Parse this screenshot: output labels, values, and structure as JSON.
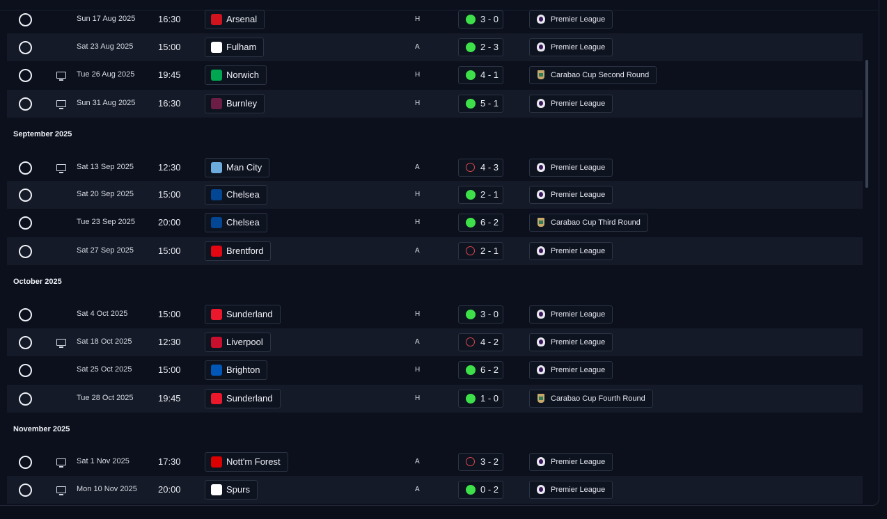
{
  "months": [
    "September 2025",
    "October 2025",
    "November 2025"
  ],
  "fixtures": [
    {
      "date": "Sun 17 Aug 2025",
      "time": "16:30",
      "team": "Arsenal",
      "team_color": "#d1131d",
      "venue": "H",
      "result": "win",
      "score": "3 - 0",
      "competition": "Premier League",
      "comp_type": "pl",
      "tv": false
    },
    {
      "date": "Sat 23 Aug 2025",
      "time": "15:00",
      "team": "Fulham",
      "team_color": "#ffffff",
      "venue": "A",
      "result": "win",
      "score": "2 - 3",
      "competition": "Premier League",
      "comp_type": "pl",
      "tv": false
    },
    {
      "date": "Tue 26 Aug 2025",
      "time": "19:45",
      "team": "Norwich",
      "team_color": "#00a650",
      "venue": "H",
      "result": "win",
      "score": "4 - 1",
      "competition": "Carabao Cup Second Round",
      "comp_type": "cup",
      "tv": true
    },
    {
      "date": "Sun 31 Aug 2025",
      "time": "16:30",
      "team": "Burnley",
      "team_color": "#6c1d45",
      "venue": "H",
      "result": "win",
      "score": "5 - 1",
      "competition": "Premier League",
      "comp_type": "pl",
      "tv": true
    },
    {
      "date": "Sat 13 Sep 2025",
      "time": "12:30",
      "team": "Man City",
      "team_color": "#6cabdd",
      "venue": "A",
      "result": "loss",
      "score": "4 - 3",
      "competition": "Premier League",
      "comp_type": "pl",
      "tv": true
    },
    {
      "date": "Sat 20 Sep 2025",
      "time": "15:00",
      "team": "Chelsea",
      "team_color": "#034694",
      "venue": "H",
      "result": "win",
      "score": "2 - 1",
      "competition": "Premier League",
      "comp_type": "pl",
      "tv": false
    },
    {
      "date": "Tue 23 Sep 2025",
      "time": "20:00",
      "team": "Chelsea",
      "team_color": "#034694",
      "venue": "H",
      "result": "win",
      "score": "6 - 2",
      "competition": "Carabao Cup Third Round",
      "comp_type": "cup",
      "tv": false
    },
    {
      "date": "Sat 27 Sep 2025",
      "time": "15:00",
      "team": "Brentford",
      "team_color": "#e30613",
      "venue": "A",
      "result": "loss",
      "score": "2 - 1",
      "competition": "Premier League",
      "comp_type": "pl",
      "tv": false
    },
    {
      "date": "Sat 4 Oct 2025",
      "time": "15:00",
      "team": "Sunderland",
      "team_color": "#eb172b",
      "venue": "H",
      "result": "win",
      "score": "3 - 0",
      "competition": "Premier League",
      "comp_type": "pl",
      "tv": false
    },
    {
      "date": "Sat 18 Oct 2025",
      "time": "12:30",
      "team": "Liverpool",
      "team_color": "#c8102e",
      "venue": "A",
      "result": "loss",
      "score": "4 - 2",
      "competition": "Premier League",
      "comp_type": "pl",
      "tv": true
    },
    {
      "date": "Sat 25 Oct 2025",
      "time": "15:00",
      "team": "Brighton",
      "team_color": "#0057b8",
      "venue": "H",
      "result": "win",
      "score": "6 - 2",
      "competition": "Premier League",
      "comp_type": "pl",
      "tv": false
    },
    {
      "date": "Tue 28 Oct 2025",
      "time": "19:45",
      "team": "Sunderland",
      "team_color": "#eb172b",
      "venue": "H",
      "result": "win",
      "score": "1 - 0",
      "competition": "Carabao Cup Fourth Round",
      "comp_type": "cup",
      "tv": false
    },
    {
      "date": "Sat 1 Nov 2025",
      "time": "17:30",
      "team": "Nott'm Forest",
      "team_color": "#dd0000",
      "venue": "A",
      "result": "loss",
      "score": "3 - 2",
      "competition": "Premier League",
      "comp_type": "pl",
      "tv": true
    },
    {
      "date": "Mon 10 Nov 2025",
      "time": "20:00",
      "team": "Spurs",
      "team_color": "#ffffff",
      "venue": "A",
      "result": "win",
      "score": "0 - 2",
      "competition": "Premier League",
      "comp_type": "pl",
      "tv": true
    }
  ]
}
